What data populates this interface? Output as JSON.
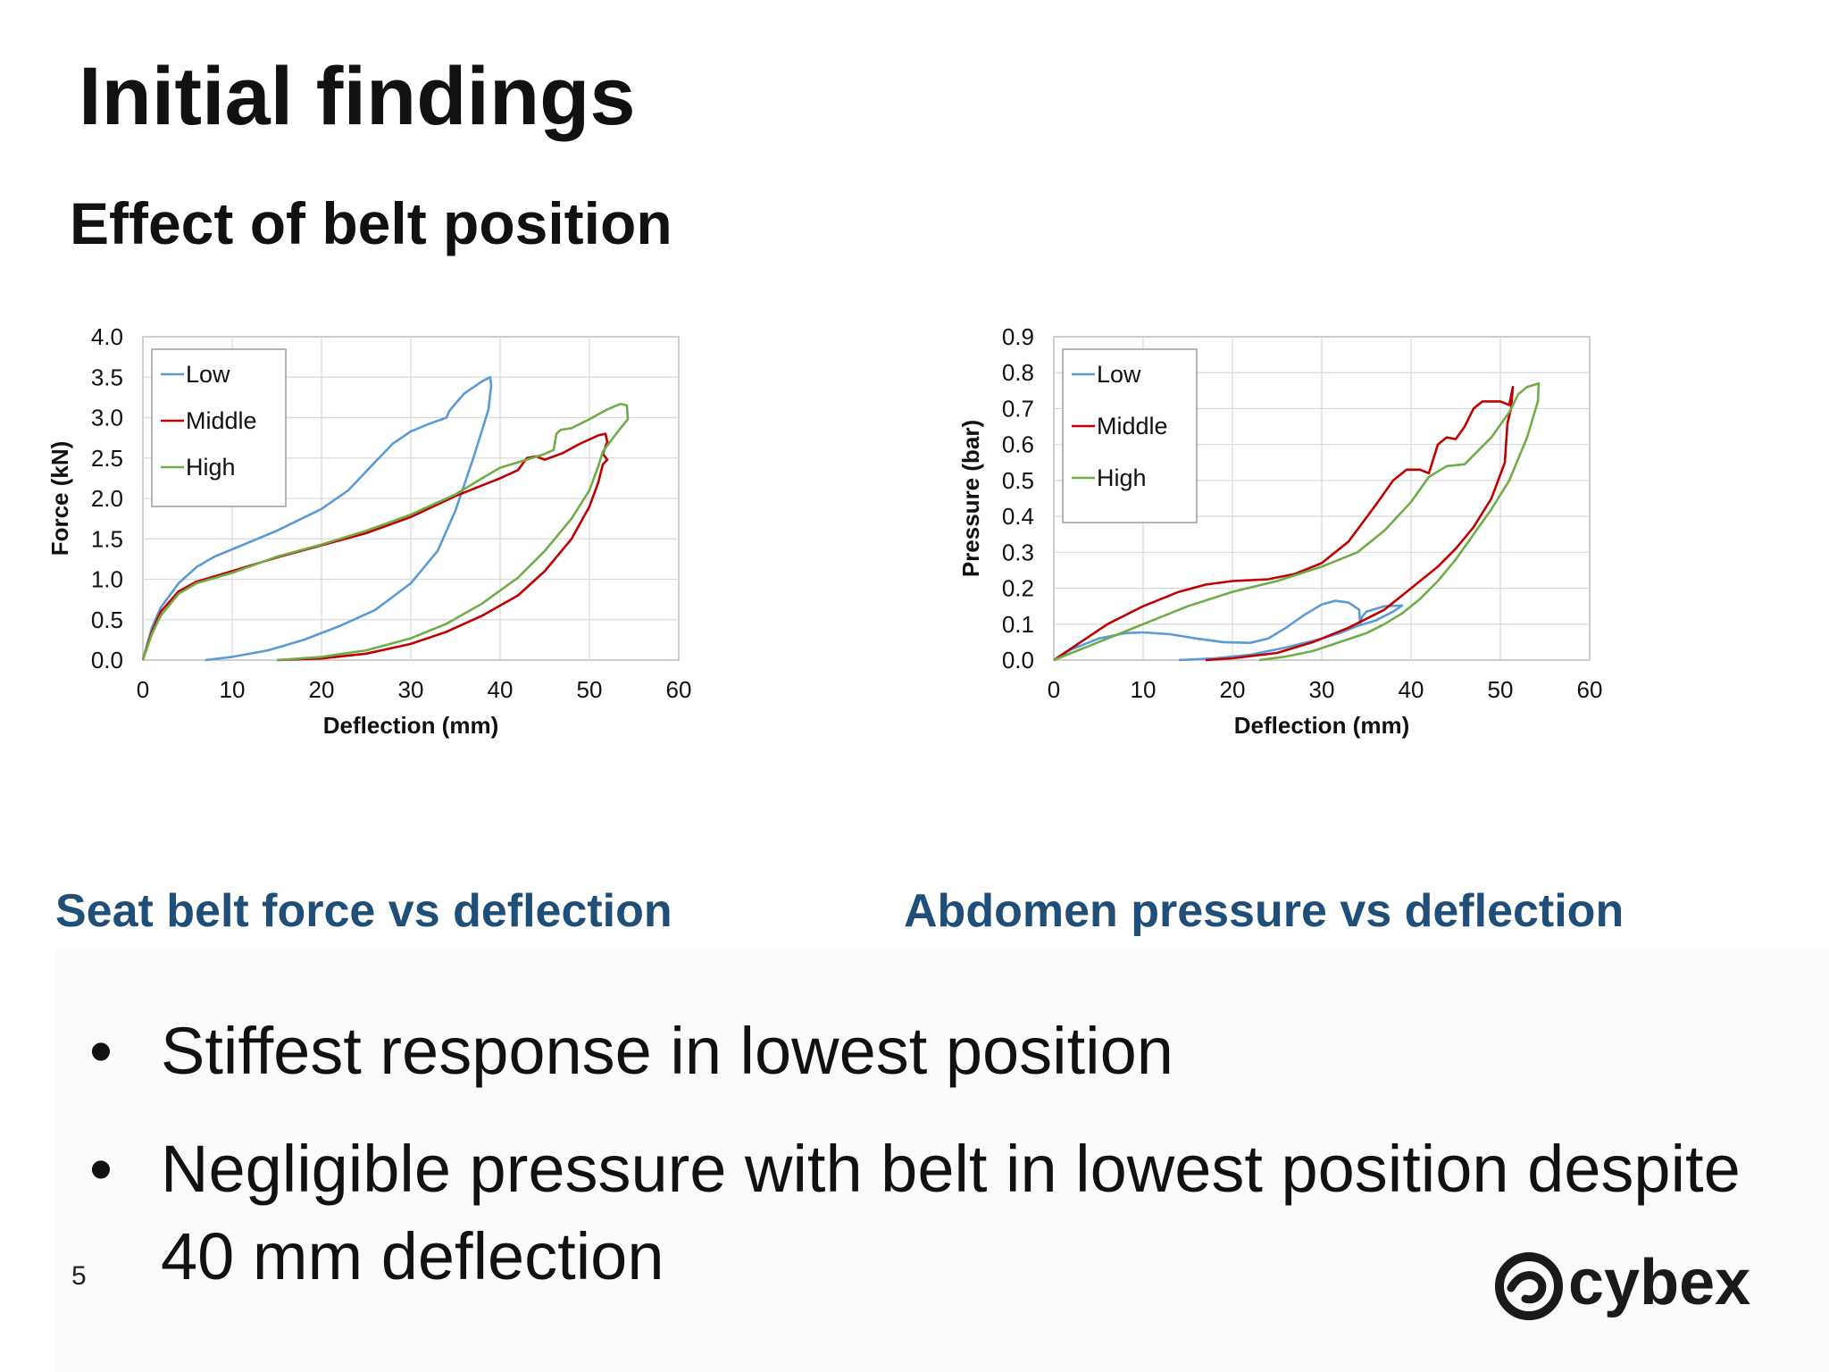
{
  "slide": {
    "title": "Initial findings",
    "subtitle": "Effect of belt position",
    "captions": [
      "Seat belt force vs deflection",
      "Abdomen pressure vs deflection"
    ],
    "bullets": [
      "Stiffest response in lowest position",
      "Negligible pressure with belt in lowest position despite 40 mm deflection"
    ],
    "page_number": "5",
    "logo_text": "cybex",
    "colors": {
      "caption": "#1f4e79",
      "low": "#5b9bd5",
      "middle": "#c00000",
      "high": "#70ad47"
    }
  },
  "chart_data": [
    {
      "type": "line",
      "title": "",
      "xlabel": "Deflection (mm)",
      "ylabel": "Force (kN)",
      "xlim": [
        0,
        60
      ],
      "ylim": [
        0,
        4
      ],
      "xticks": [
        0,
        10,
        20,
        30,
        40,
        50,
        60
      ],
      "yticks": [
        "0.0",
        "0.5",
        "1.0",
        "1.5",
        "2.0",
        "2.5",
        "3.0",
        "3.5",
        "4.0"
      ],
      "grid": true,
      "legend": "top-left",
      "series": [
        {
          "name": "Low",
          "color": "#5b9bd5",
          "points": [
            [
              0,
              0
            ],
            [
              1,
              0.4
            ],
            [
              2,
              0.65
            ],
            [
              4,
              0.95
            ],
            [
              6,
              1.15
            ],
            [
              8,
              1.28
            ],
            [
              10,
              1.37
            ],
            [
              15,
              1.6
            ],
            [
              20,
              1.87
            ],
            [
              23,
              2.1
            ],
            [
              26,
              2.45
            ],
            [
              28,
              2.68
            ],
            [
              30,
              2.83
            ],
            [
              32,
              2.92
            ],
            [
              34,
              3.0
            ],
            [
              34.3,
              3.08
            ],
            [
              34.6,
              3.12
            ],
            [
              36,
              3.3
            ],
            [
              38,
              3.45
            ],
            [
              38.9,
              3.5
            ],
            [
              39,
              3.4
            ],
            [
              38.7,
              3.1
            ],
            [
              37,
              2.5
            ],
            [
              35,
              1.85
            ],
            [
              33,
              1.35
            ],
            [
              30,
              0.95
            ],
            [
              26,
              0.62
            ],
            [
              22,
              0.42
            ],
            [
              18,
              0.25
            ],
            [
              14,
              0.12
            ],
            [
              10,
              0.04
            ],
            [
              7,
              0
            ]
          ]
        },
        {
          "name": "Middle",
          "color": "#c00000",
          "points": [
            [
              0,
              0
            ],
            [
              1,
              0.35
            ],
            [
              2,
              0.6
            ],
            [
              4,
              0.85
            ],
            [
              6,
              0.97
            ],
            [
              10,
              1.1
            ],
            [
              15,
              1.27
            ],
            [
              20,
              1.42
            ],
            [
              25,
              1.57
            ],
            [
              30,
              1.77
            ],
            [
              35,
              2.03
            ],
            [
              40,
              2.25
            ],
            [
              42,
              2.35
            ],
            [
              43,
              2.5
            ],
            [
              44,
              2.52
            ],
            [
              45,
              2.48
            ],
            [
              47,
              2.56
            ],
            [
              49,
              2.68
            ],
            [
              51,
              2.78
            ],
            [
              51.8,
              2.8
            ],
            [
              52,
              2.7
            ],
            [
              51.5,
              2.55
            ],
            [
              52,
              2.48
            ],
            [
              51.5,
              2.42
            ],
            [
              51,
              2.2
            ],
            [
              50,
              1.9
            ],
            [
              48,
              1.5
            ],
            [
              45,
              1.1
            ],
            [
              42,
              0.8
            ],
            [
              38,
              0.55
            ],
            [
              34,
              0.35
            ],
            [
              30,
              0.2
            ],
            [
              25,
              0.08
            ],
            [
              20,
              0.02
            ],
            [
              15,
              0
            ]
          ]
        },
        {
          "name": "High",
          "color": "#70ad47",
          "points": [
            [
              0,
              0
            ],
            [
              1,
              0.32
            ],
            [
              2,
              0.55
            ],
            [
              4,
              0.82
            ],
            [
              6,
              0.95
            ],
            [
              10,
              1.08
            ],
            [
              15,
              1.28
            ],
            [
              20,
              1.43
            ],
            [
              25,
              1.6
            ],
            [
              30,
              1.8
            ],
            [
              35,
              2.05
            ],
            [
              38,
              2.25
            ],
            [
              40,
              2.38
            ],
            [
              43,
              2.48
            ],
            [
              45,
              2.55
            ],
            [
              46,
              2.6
            ],
            [
              46.3,
              2.8
            ],
            [
              46.8,
              2.85
            ],
            [
              48,
              2.87
            ],
            [
              50,
              2.98
            ],
            [
              52,
              3.1
            ],
            [
              53.5,
              3.17
            ],
            [
              54.2,
              3.15
            ],
            [
              54.3,
              2.98
            ],
            [
              53,
              2.8
            ],
            [
              51.5,
              2.58
            ],
            [
              51,
              2.4
            ],
            [
              50,
              2.1
            ],
            [
              48,
              1.75
            ],
            [
              45,
              1.35
            ],
            [
              42,
              1.02
            ],
            [
              38,
              0.7
            ],
            [
              34,
              0.45
            ],
            [
              30,
              0.27
            ],
            [
              25,
              0.12
            ],
            [
              20,
              0.04
            ],
            [
              15,
              0
            ]
          ]
        }
      ]
    },
    {
      "type": "line",
      "title": "",
      "xlabel": "Deflection (mm)",
      "ylabel": "Pressure (bar)",
      "xlim": [
        0,
        60
      ],
      "ylim": [
        0,
        0.9
      ],
      "xticks": [
        0,
        10,
        20,
        30,
        40,
        50,
        60
      ],
      "yticks": [
        "0.0",
        "0.1",
        "0.2",
        "0.3",
        "0.4",
        "0.5",
        "0.6",
        "0.7",
        "0.8",
        "0.9"
      ],
      "grid": true,
      "legend": "top-left",
      "series": [
        {
          "name": "Low",
          "color": "#5b9bd5",
          "points": [
            [
              0,
              0
            ],
            [
              2,
              0.03
            ],
            [
              5,
              0.06
            ],
            [
              8,
              0.075
            ],
            [
              10,
              0.077
            ],
            [
              13,
              0.072
            ],
            [
              16,
              0.06
            ],
            [
              19,
              0.05
            ],
            [
              22,
              0.048
            ],
            [
              24,
              0.06
            ],
            [
              26,
              0.09
            ],
            [
              28,
              0.125
            ],
            [
              30,
              0.155
            ],
            [
              31.5,
              0.165
            ],
            [
              33,
              0.16
            ],
            [
              34.2,
              0.14
            ],
            [
              34.3,
              0.1
            ],
            [
              34.5,
              0.12
            ],
            [
              35,
              0.135
            ],
            [
              37,
              0.15
            ],
            [
              39,
              0.152
            ],
            [
              38,
              0.135
            ],
            [
              36,
              0.11
            ],
            [
              34,
              0.095
            ],
            [
              32,
              0.075
            ],
            [
              30,
              0.06
            ],
            [
              26,
              0.035
            ],
            [
              22,
              0.015
            ],
            [
              18,
              0.005
            ],
            [
              14,
              0
            ]
          ]
        },
        {
          "name": "Middle",
          "color": "#c00000",
          "points": [
            [
              0,
              0
            ],
            [
              3,
              0.05
            ],
            [
              6,
              0.1
            ],
            [
              10,
              0.15
            ],
            [
              14,
              0.19
            ],
            [
              17,
              0.21
            ],
            [
              20,
              0.22
            ],
            [
              24,
              0.225
            ],
            [
              27,
              0.24
            ],
            [
              30,
              0.27
            ],
            [
              33,
              0.33
            ],
            [
              36,
              0.43
            ],
            [
              38,
              0.5
            ],
            [
              39.5,
              0.53
            ],
            [
              41,
              0.53
            ],
            [
              42,
              0.52
            ],
            [
              43,
              0.6
            ],
            [
              44,
              0.62
            ],
            [
              45,
              0.615
            ],
            [
              46,
              0.65
            ],
            [
              47,
              0.7
            ],
            [
              48,
              0.72
            ],
            [
              49,
              0.72
            ],
            [
              50,
              0.72
            ],
            [
              51,
              0.71
            ],
            [
              51.4,
              0.76
            ],
            [
              51.2,
              0.7
            ],
            [
              50.8,
              0.66
            ],
            [
              50.5,
              0.55
            ],
            [
              49,
              0.45
            ],
            [
              47,
              0.37
            ],
            [
              45,
              0.31
            ],
            [
              43,
              0.26
            ],
            [
              40,
              0.2
            ],
            [
              37,
              0.14
            ],
            [
              33,
              0.09
            ],
            [
              29,
              0.05
            ],
            [
              25,
              0.02
            ],
            [
              20,
              0.005
            ],
            [
              17,
              0
            ]
          ]
        },
        {
          "name": "High",
          "color": "#70ad47",
          "points": [
            [
              0,
              0
            ],
            [
              5,
              0.05
            ],
            [
              10,
              0.1
            ],
            [
              15,
              0.15
            ],
            [
              20,
              0.19
            ],
            [
              25,
              0.22
            ],
            [
              30,
              0.26
            ],
            [
              34,
              0.3
            ],
            [
              37,
              0.36
            ],
            [
              40,
              0.44
            ],
            [
              42,
              0.51
            ],
            [
              44,
              0.54
            ],
            [
              46,
              0.545
            ],
            [
              47,
              0.57
            ],
            [
              49,
              0.62
            ],
            [
              51,
              0.69
            ],
            [
              52,
              0.74
            ],
            [
              53,
              0.76
            ],
            [
              54.3,
              0.77
            ],
            [
              54.2,
              0.72
            ],
            [
              53,
              0.62
            ],
            [
              51,
              0.5
            ],
            [
              49,
              0.42
            ],
            [
              47,
              0.35
            ],
            [
              45,
              0.28
            ],
            [
              43,
              0.22
            ],
            [
              41,
              0.17
            ],
            [
              39,
              0.13
            ],
            [
              37,
              0.1
            ],
            [
              35,
              0.075
            ],
            [
              32,
              0.05
            ],
            [
              29,
              0.025
            ],
            [
              26,
              0.01
            ],
            [
              23,
              0
            ]
          ]
        }
      ]
    }
  ]
}
